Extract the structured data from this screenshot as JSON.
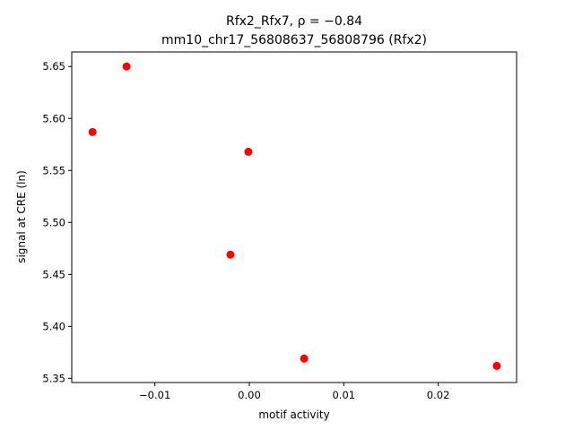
{
  "chart_data": {
    "type": "scatter",
    "title_line1": "Rfx2_Rfx7, ρ = −0.84",
    "title_line2": "mm10_chr17_56808637_56808796 (Rfx2)",
    "xlabel": "motif activity",
    "ylabel": "signal at CRE (ln)",
    "xlim": [
      -0.0188,
      0.0283
    ],
    "ylim": [
      5.346,
      5.664
    ],
    "xticks": [
      -0.01,
      0.0,
      0.01,
      0.02
    ],
    "xtick_labels": [
      "−0.01",
      "0.00",
      "0.01",
      "0.02"
    ],
    "yticks": [
      5.35,
      5.4,
      5.45,
      5.5,
      5.55,
      5.6,
      5.65
    ],
    "ytick_labels": [
      "5.35",
      "5.40",
      "5.45",
      "5.50",
      "5.55",
      "5.60",
      "5.65"
    ],
    "grid": false,
    "point_color": "#ff0000",
    "points": [
      {
        "x": -0.0166,
        "y": 5.587
      },
      {
        "x": -0.013,
        "y": 5.65
      },
      {
        "x": -0.0001,
        "y": 5.568
      },
      {
        "x": -0.002,
        "y": 5.469
      },
      {
        "x": 0.0058,
        "y": 5.369
      },
      {
        "x": 0.0262,
        "y": 5.362
      }
    ]
  }
}
